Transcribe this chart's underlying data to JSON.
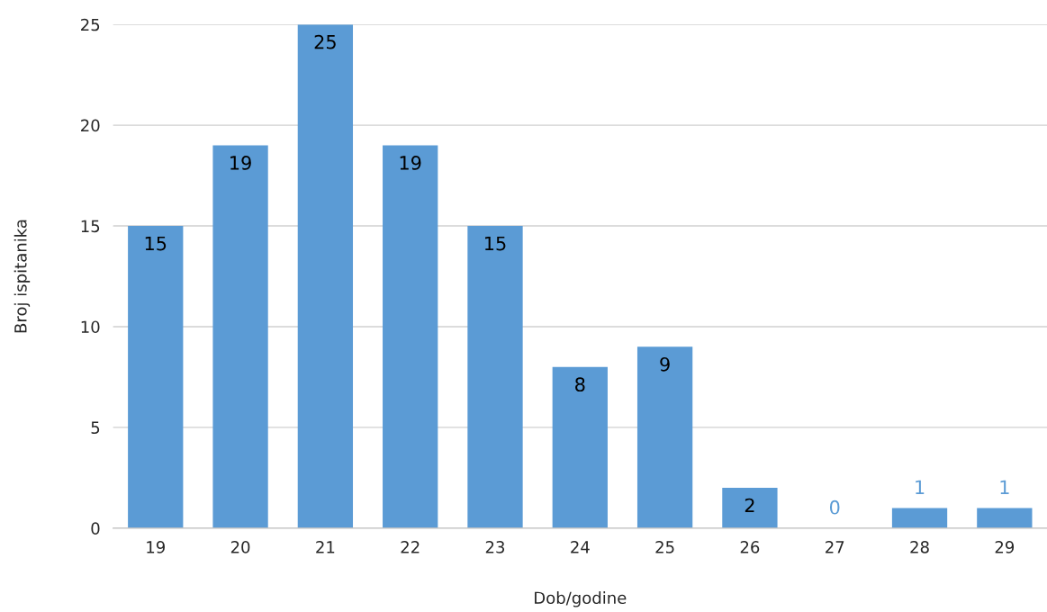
{
  "chart_data": {
    "type": "bar",
    "xlabel": "Dob/godine",
    "ylabel": "Broj ispitanika",
    "categories": [
      "19",
      "20",
      "21",
      "22",
      "23",
      "24",
      "25",
      "26",
      "27",
      "28",
      "29"
    ],
    "values": [
      15,
      19,
      25,
      19,
      15,
      8,
      9,
      2,
      0,
      1,
      1
    ],
    "color": "#5b9bd5",
    "ylim": [
      0,
      25
    ],
    "yticks": [
      0,
      5,
      10,
      15,
      20,
      25
    ],
    "grid": "y",
    "data_labels": true
  }
}
